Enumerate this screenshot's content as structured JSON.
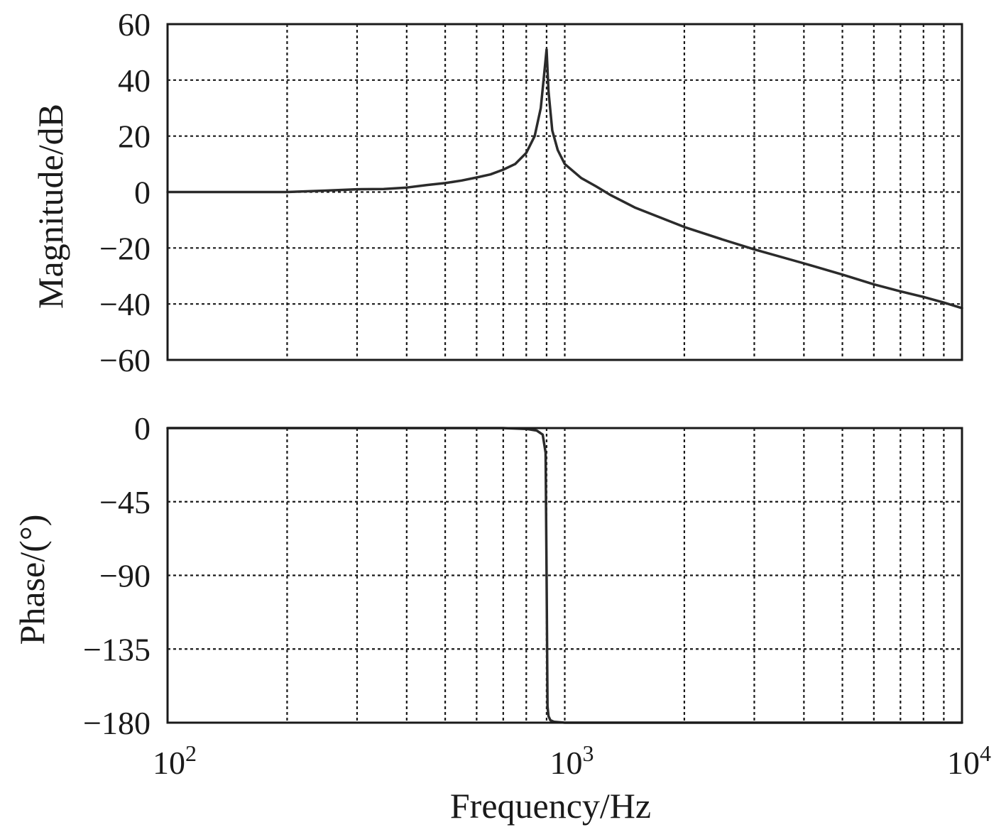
{
  "chart_data": [
    {
      "type": "line",
      "panel": "magnitude",
      "title": "",
      "xlabel": "",
      "ylabel": "Magnitude/dB",
      "x_scale": "log",
      "xlim": [
        100,
        10000
      ],
      "ylim": [
        -60,
        60
      ],
      "y_ticks": [
        "60",
        "40",
        "20",
        "0",
        "−20",
        "−40",
        "−60"
      ],
      "y_tick_values": [
        60,
        40,
        20,
        0,
        -20,
        -40,
        -60
      ],
      "grid": true,
      "series": [
        {
          "x": [
            100,
            150,
            200,
            250,
            300,
            350,
            400,
            450,
            500,
            550,
            600,
            650,
            700,
            750,
            800,
            840,
            870,
            890,
            900,
            910,
            930,
            960,
            1000,
            1100,
            1200,
            1300,
            1500,
            2000,
            2500,
            3000,
            4000,
            5000,
            6000,
            7000,
            8000,
            9000,
            10000
          ],
          "y": [
            0,
            0,
            0,
            0.5,
            1,
            1.1,
            1.6,
            2.5,
            3.2,
            4.1,
            5.2,
            6.3,
            8,
            10,
            14,
            20,
            30,
            44,
            51,
            36,
            22,
            15,
            10,
            5,
            2,
            -1,
            -5.5,
            -12.5,
            -17,
            -20.5,
            -25.5,
            -29.5,
            -33,
            -35.5,
            -37.5,
            -39.5,
            -41.5
          ]
        }
      ]
    },
    {
      "type": "line",
      "panel": "phase",
      "title": "",
      "xlabel": "Frequency/Hz",
      "ylabel": "Phase/(°)",
      "x_scale": "log",
      "xlim": [
        100,
        10000
      ],
      "ylim": [
        -180,
        0
      ],
      "y_ticks": [
        "0",
        "−45",
        "−90",
        "−135",
        "−180"
      ],
      "y_tick_values": [
        0,
        -45,
        -90,
        -135,
        -180
      ],
      "x_ticks": [
        {
          "base": "10",
          "exp": "2",
          "value": 100
        },
        {
          "base": "10",
          "exp": "3",
          "value": 1000
        },
        {
          "base": "10",
          "exp": "4",
          "value": 10000
        }
      ],
      "grid": true,
      "series": [
        {
          "x": [
            100,
            300,
            500,
            700,
            800,
            850,
            880,
            895,
            900,
            905,
            910,
            920,
            940,
            1000,
            1100,
            2000,
            5000,
            10000
          ],
          "y": [
            0,
            0,
            0,
            0,
            -0.5,
            -1.5,
            -4,
            -15,
            -90,
            -170,
            -176,
            -178.5,
            -179.5,
            -180,
            -180,
            -180,
            -180,
            -180
          ]
        }
      ]
    }
  ]
}
